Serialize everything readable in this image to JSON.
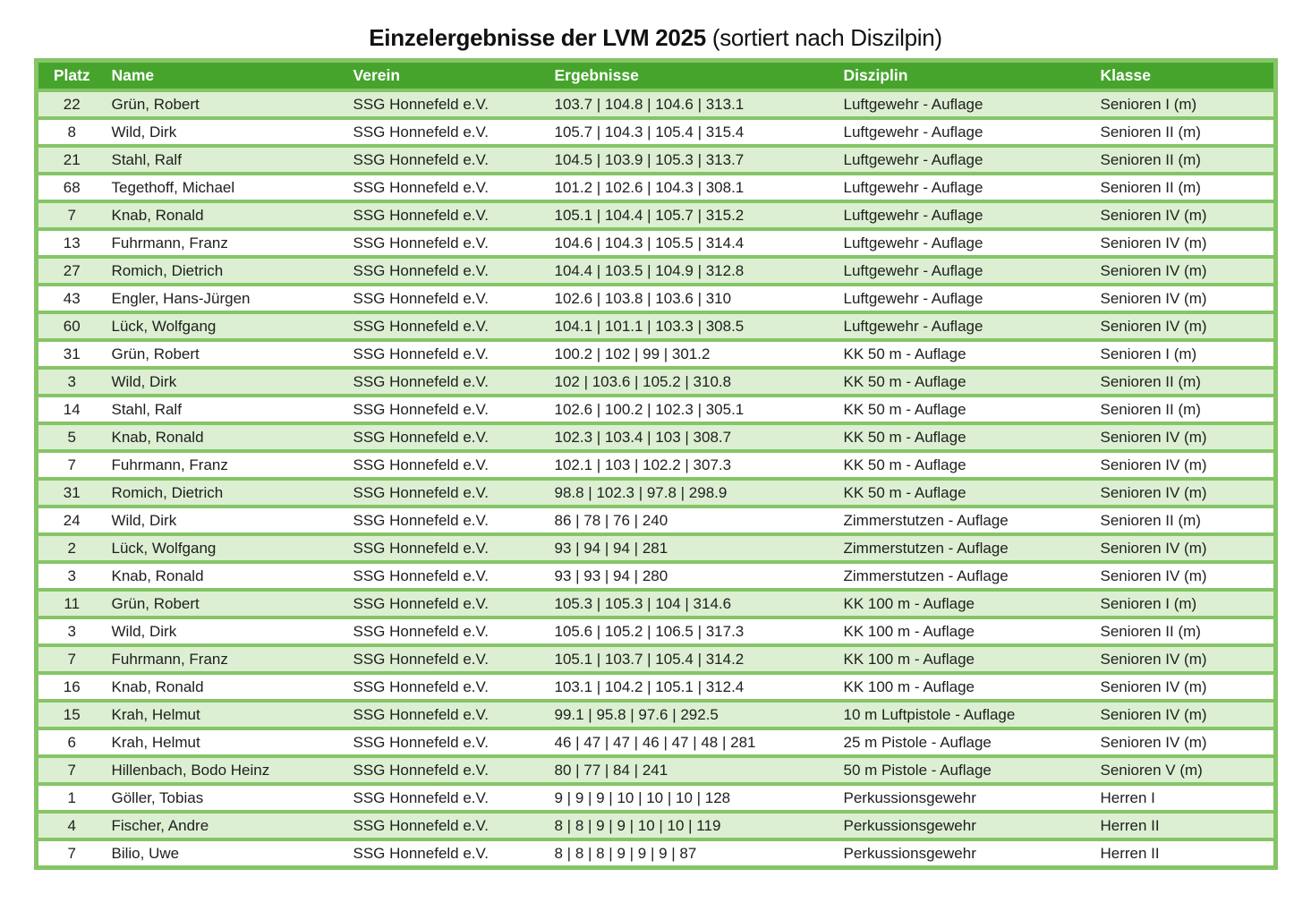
{
  "title": {
    "main": "Einzelergebnisse der LVM 2025",
    "suffix": " (sortiert nach Diszilpin)"
  },
  "colors": {
    "header_bg": "#46a42d",
    "header_text": "#ffffff",
    "grid_green": "#85c566",
    "row_light_green": "#dcefd2",
    "row_white": "#ffffff",
    "body_text": "#202020"
  },
  "table": {
    "headers": [
      "Platz",
      "Name",
      "Verein",
      "Ergebnisse",
      "Disziplin",
      "Klasse"
    ],
    "rows": [
      {
        "platz": "22",
        "name": "Grün, Robert",
        "verein": "SSG Honnefeld e.V.",
        "ergebnisse": "103.7 | 104.8 | 104.6 | 313.1",
        "disziplin": "Luftgewehr - Auflage",
        "klasse": "Senioren I (m)"
      },
      {
        "platz": "8",
        "name": "Wild, Dirk",
        "verein": "SSG Honnefeld e.V.",
        "ergebnisse": "105.7 | 104.3 | 105.4 | 315.4",
        "disziplin": "Luftgewehr - Auflage",
        "klasse": "Senioren II (m)"
      },
      {
        "platz": "21",
        "name": "Stahl, Ralf",
        "verein": "SSG Honnefeld e.V.",
        "ergebnisse": "104.5 | 103.9 | 105.3 | 313.7",
        "disziplin": "Luftgewehr - Auflage",
        "klasse": "Senioren II (m)"
      },
      {
        "platz": "68",
        "name": "Tegethoff, Michael",
        "verein": "SSG Honnefeld e.V.",
        "ergebnisse": "101.2 | 102.6 | 104.3 | 308.1",
        "disziplin": "Luftgewehr - Auflage",
        "klasse": "Senioren II (m)"
      },
      {
        "platz": "7",
        "name": "Knab, Ronald",
        "verein": "SSG Honnefeld e.V.",
        "ergebnisse": "105.1 | 104.4 | 105.7 | 315.2",
        "disziplin": "Luftgewehr - Auflage",
        "klasse": "Senioren IV (m)"
      },
      {
        "platz": "13",
        "name": "Fuhrmann, Franz",
        "verein": "SSG Honnefeld e.V.",
        "ergebnisse": "104.6 | 104.3 | 105.5 | 314.4",
        "disziplin": "Luftgewehr - Auflage",
        "klasse": "Senioren IV (m)"
      },
      {
        "platz": "27",
        "name": "Romich, Dietrich",
        "verein": "SSG Honnefeld e.V.",
        "ergebnisse": "104.4 | 103.5 | 104.9 | 312.8",
        "disziplin": "Luftgewehr - Auflage",
        "klasse": "Senioren IV (m)"
      },
      {
        "platz": "43",
        "name": "Engler, Hans-Jürgen",
        "verein": "SSG Honnefeld e.V.",
        "ergebnisse": "102.6 | 103.8 | 103.6 | 310",
        "disziplin": "Luftgewehr - Auflage",
        "klasse": "Senioren IV (m)"
      },
      {
        "platz": "60",
        "name": "Lück, Wolfgang",
        "verein": "SSG Honnefeld e.V.",
        "ergebnisse": "104.1 | 101.1 | 103.3 | 308.5",
        "disziplin": "Luftgewehr - Auflage",
        "klasse": "Senioren IV (m)"
      },
      {
        "platz": "31",
        "name": "Grün, Robert",
        "verein": "SSG Honnefeld e.V.",
        "ergebnisse": "100.2 | 102 | 99 | 301.2",
        "disziplin": "KK 50 m - Auflage",
        "klasse": "Senioren I (m)"
      },
      {
        "platz": "3",
        "name": "Wild, Dirk",
        "verein": "SSG Honnefeld e.V.",
        "ergebnisse": "102 | 103.6 | 105.2 | 310.8",
        "disziplin": "KK 50 m - Auflage",
        "klasse": "Senioren II (m)"
      },
      {
        "platz": "14",
        "name": "Stahl, Ralf",
        "verein": "SSG Honnefeld e.V.",
        "ergebnisse": "102.6 | 100.2 | 102.3 | 305.1",
        "disziplin": "KK 50 m - Auflage",
        "klasse": "Senioren II (m)"
      },
      {
        "platz": "5",
        "name": "Knab, Ronald",
        "verein": "SSG Honnefeld e.V.",
        "ergebnisse": "102.3 | 103.4 | 103 | 308.7",
        "disziplin": "KK 50 m - Auflage",
        "klasse": "Senioren IV (m)"
      },
      {
        "platz": "7",
        "name": "Fuhrmann, Franz",
        "verein": "SSG Honnefeld e.V.",
        "ergebnisse": "102.1 | 103 | 102.2 | 307.3",
        "disziplin": "KK 50 m - Auflage",
        "klasse": "Senioren IV (m)"
      },
      {
        "platz": "31",
        "name": "Romich, Dietrich",
        "verein": "SSG Honnefeld e.V.",
        "ergebnisse": "98.8 | 102.3 | 97.8 | 298.9",
        "disziplin": "KK 50 m - Auflage",
        "klasse": "Senioren IV (m)"
      },
      {
        "platz": "24",
        "name": "Wild, Dirk",
        "verein": "SSG Honnefeld e.V.",
        "ergebnisse": "86 | 78 | 76 | 240",
        "disziplin": "Zimmerstutzen - Auflage",
        "klasse": "Senioren II (m)"
      },
      {
        "platz": "2",
        "name": "Lück, Wolfgang",
        "verein": "SSG Honnefeld e.V.",
        "ergebnisse": "93 | 94 | 94 | 281",
        "disziplin": "Zimmerstutzen - Auflage",
        "klasse": "Senioren IV (m)"
      },
      {
        "platz": "3",
        "name": "Knab, Ronald",
        "verein": "SSG Honnefeld e.V.",
        "ergebnisse": "93 | 93 | 94 | 280",
        "disziplin": "Zimmerstutzen - Auflage",
        "klasse": "Senioren IV (m)"
      },
      {
        "platz": "11",
        "name": "Grün, Robert",
        "verein": "SSG Honnefeld e.V.",
        "ergebnisse": "105.3 | 105.3 | 104 | 314.6",
        "disziplin": "KK 100 m - Auflage",
        "klasse": "Senioren I (m)"
      },
      {
        "platz": "3",
        "name": "Wild, Dirk",
        "verein": "SSG Honnefeld e.V.",
        "ergebnisse": "105.6 | 105.2 | 106.5 | 317.3",
        "disziplin": "KK 100 m - Auflage",
        "klasse": "Senioren II (m)"
      },
      {
        "platz": "7",
        "name": "Fuhrmann, Franz",
        "verein": "SSG Honnefeld e.V.",
        "ergebnisse": "105.1 | 103.7 | 105.4 | 314.2",
        "disziplin": "KK 100 m - Auflage",
        "klasse": "Senioren IV (m)"
      },
      {
        "platz": "16",
        "name": "Knab, Ronald",
        "verein": "SSG Honnefeld e.V.",
        "ergebnisse": "103.1 | 104.2 | 105.1 | 312.4",
        "disziplin": "KK 100 m - Auflage",
        "klasse": "Senioren IV (m)"
      },
      {
        "platz": "15",
        "name": "Krah, Helmut",
        "verein": "SSG Honnefeld e.V.",
        "ergebnisse": "99.1 | 95.8 | 97.6 | 292.5",
        "disziplin": "10 m Luftpistole - Auflage",
        "klasse": "Senioren IV (m)"
      },
      {
        "platz": "6",
        "name": "Krah, Helmut",
        "verein": "SSG Honnefeld e.V.",
        "ergebnisse": "46 | 47 | 47 | 46 | 47 | 48 | 281",
        "disziplin": "25 m Pistole - Auflage",
        "klasse": "Senioren IV (m)"
      },
      {
        "platz": "7",
        "name": "Hillenbach, Bodo Heinz",
        "verein": "SSG Honnefeld e.V.",
        "ergebnisse": "80 | 77 | 84 | 241",
        "disziplin": "50 m Pistole - Auflage",
        "klasse": "Senioren V (m)"
      },
      {
        "platz": "1",
        "name": "Göller, Tobias",
        "verein": "SSG Honnefeld e.V.",
        "ergebnisse": "9 | 9 | 9 | 10 | 10 | 10 | 128",
        "disziplin": "Perkussionsgewehr",
        "klasse": "Herren I"
      },
      {
        "platz": "4",
        "name": "Fischer, Andre",
        "verein": "SSG Honnefeld e.V.",
        "ergebnisse": "8 | 8 | 9 | 9 | 10 | 10 | 119",
        "disziplin": "Perkussionsgewehr",
        "klasse": "Herren II"
      },
      {
        "platz": "7",
        "name": "Bilio, Uwe",
        "verein": "SSG Honnefeld e.V.",
        "ergebnisse": "8 | 8 | 8 | 9 | 9 | 9 | 87",
        "disziplin": "Perkussionsgewehr",
        "klasse": "Herren II"
      }
    ]
  }
}
